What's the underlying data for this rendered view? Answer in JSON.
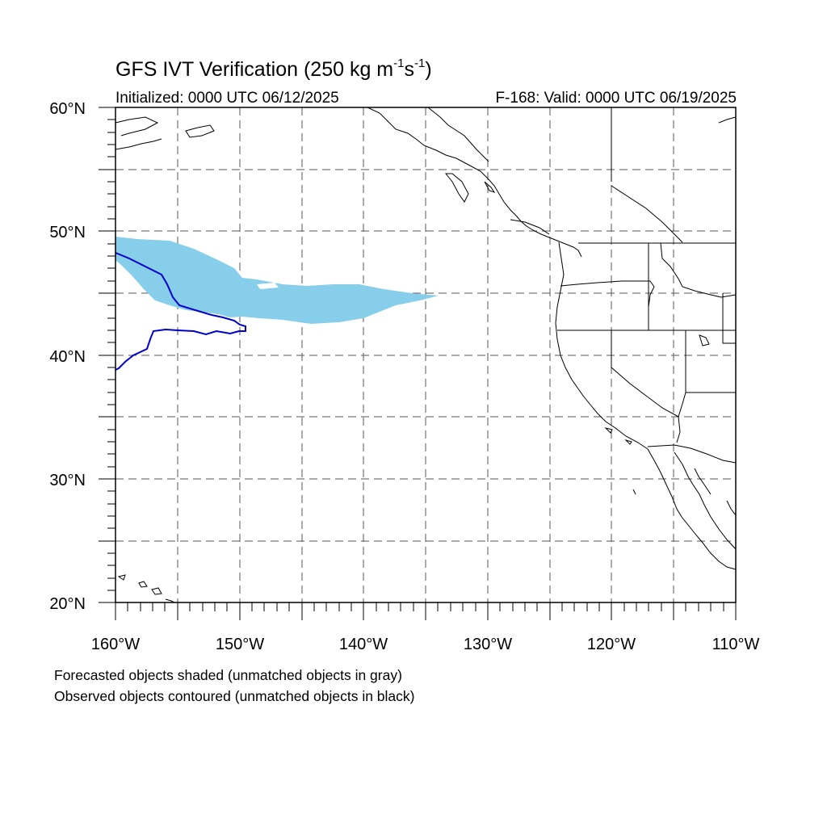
{
  "header": {
    "title_main": "GFS IVT Verification (250 kg m",
    "title_exp1": "-1",
    "title_mid": "s",
    "title_exp2": "-1",
    "title_end": ")",
    "initialized": "Initialized: 0000 UTC 06/12/2025",
    "valid": "F-168: Valid: 0000 UTC 06/19/2025"
  },
  "axes": {
    "lat_labels": [
      "20°N",
      "30°N",
      "40°N",
      "50°N",
      "60°N"
    ],
    "lon_labels": [
      "160°W",
      "150°W",
      "140°W",
      "130°W",
      "120°W",
      "110°W"
    ],
    "lat_range": [
      20,
      60
    ],
    "lon_range": [
      -160,
      -110
    ],
    "grid": "dashed, every 5 degrees"
  },
  "legend": {
    "line1": "Forecasted objects shaded (unmatched objects in gray)",
    "line2": "Observed objects contoured (unmatched objects in black)"
  },
  "colors": {
    "forecast_fill": "#87ceeb",
    "observed_contour": "#0000cd",
    "coastline": "#000000",
    "grid": "#555555"
  }
}
